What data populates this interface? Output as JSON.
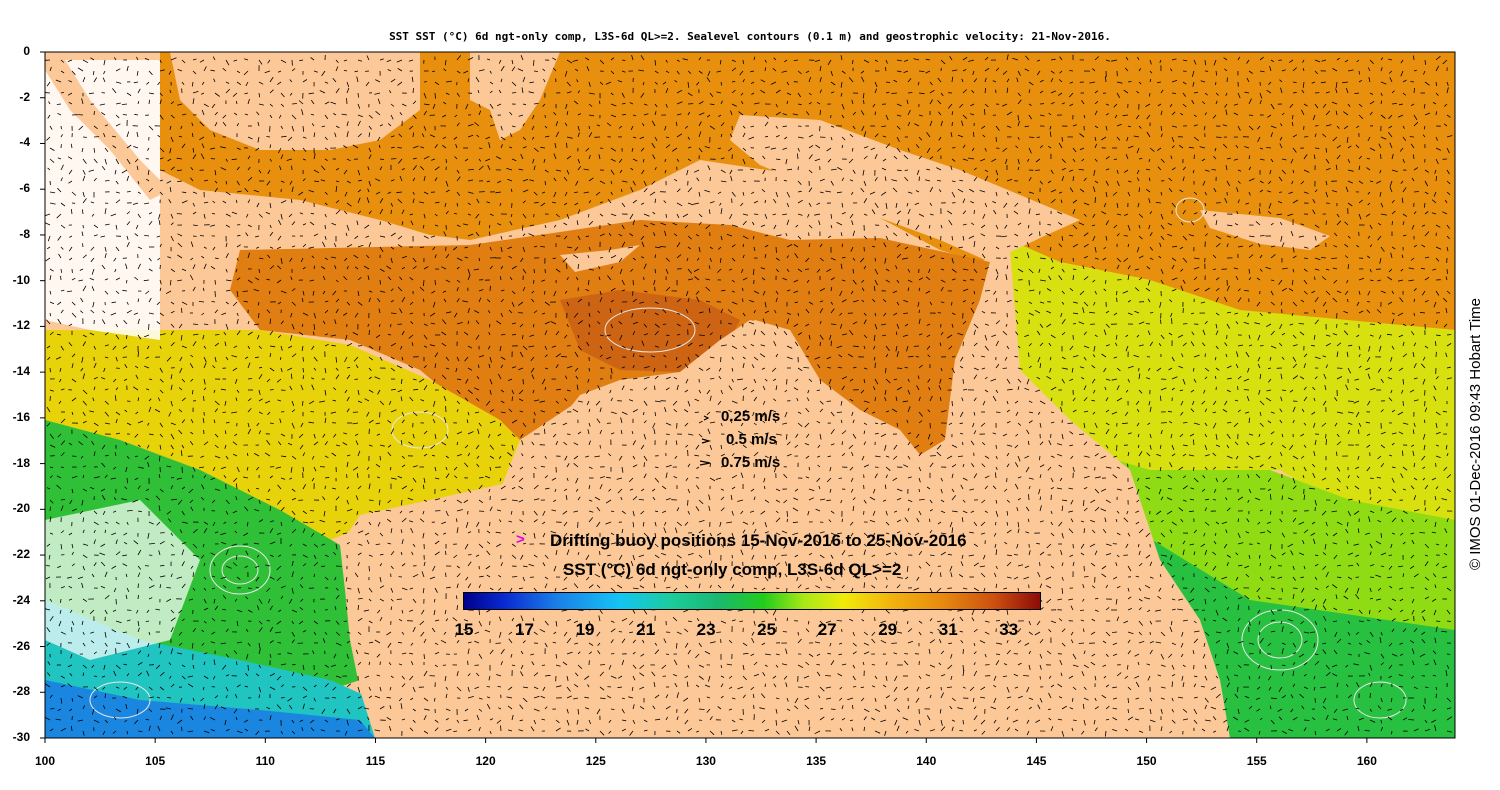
{
  "title": "SST SST (°C) 6d ngt-only comp, L3S-6d QL>=2. Sealevel contours (0.1 m) and geostrophic velocity: 21-Nov-2016.",
  "watermark": "© IMOS 01-Dec-2016 09:43 Hobart Time",
  "axes": {
    "y_ticks": [
      "0",
      "-2",
      "-4",
      "-6",
      "-8",
      "-10",
      "-12",
      "-14",
      "-16",
      "-18",
      "-20",
      "-22",
      "-24",
      "-26",
      "-28",
      "-30"
    ],
    "x_ticks": [
      "100",
      "105",
      "110",
      "115",
      "120",
      "125",
      "130",
      "135",
      "140",
      "145",
      "150",
      "155",
      "160"
    ],
    "lon_range": [
      100,
      164
    ],
    "lat_range": [
      -30,
      0
    ]
  },
  "velocity_legend": [
    {
      "label": "0.25 m/s",
      "speed": 0.25
    },
    {
      "label": "0.5 m/s",
      "speed": 0.5
    },
    {
      "label": "0.75 m/s",
      "speed": 0.75
    }
  ],
  "buoy_legend": {
    "marker": ">",
    "label": "Drifting buoy positions 15-Nov-2016 to 25-Nov-2016",
    "marker_color": "#e000e0"
  },
  "colorbar": {
    "title": "SST (°C) 6d ngt-only comp, L3S-6d QL>=2",
    "ticks": [
      "15",
      "17",
      "19",
      "21",
      "23",
      "25",
      "27",
      "29",
      "31",
      "33"
    ],
    "range": [
      15,
      34
    ]
  },
  "colors": {
    "land": "#fcc898",
    "frame": "#000000",
    "contour": "#e8e8e8"
  }
}
